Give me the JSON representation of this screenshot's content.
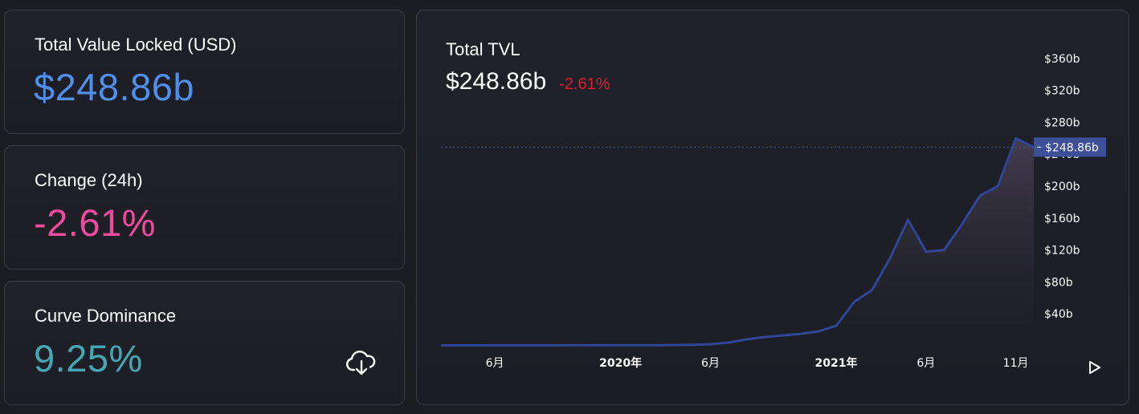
{
  "stats": {
    "tvl": {
      "label": "Total Value Locked (USD)",
      "value": "$248.86b",
      "color": "#4f8fea"
    },
    "change": {
      "label": "Change (24h)",
      "value": "-2.61%",
      "color": "#ed4b9e"
    },
    "dominance": {
      "label": "Curve Dominance",
      "value": "9.25%",
      "color": "#46a7b4",
      "download_icon": "cloud-download-icon"
    }
  },
  "chart": {
    "title": "Total TVL",
    "value": "$248.86b",
    "change": "-2.61%",
    "change_color": "#e01b2f",
    "line_color": "#2f4596",
    "price_tag_color": "#3c4f98",
    "play_icon": "play-icon"
  },
  "chart_data": {
    "type": "area",
    "title": "Total TVL",
    "y_unit": "USD",
    "ylim": [
      0,
      400
    ],
    "y_ticks": [
      40,
      80,
      120,
      160,
      200,
      240,
      280,
      320,
      360
    ],
    "y_tick_labels": [
      "$40b",
      "$80b",
      "$120b",
      "$160b",
      "$200b",
      "$240b",
      "$280b",
      "$320b",
      "$360b"
    ],
    "current_value_label": "$248.86b",
    "current_value": 248.86,
    "x_tick_labels": [
      "6月",
      "2020年",
      "6月",
      "2021年",
      "6月",
      "11月"
    ],
    "x_tick_dates": [
      "2019-06",
      "2020-01",
      "2020-06",
      "2021-01",
      "2021-06",
      "2021-11"
    ],
    "x_range": [
      "2019-03",
      "2021-12"
    ],
    "grid": false,
    "legend": "none",
    "series": [
      {
        "x": [
          "2019-03",
          "2019-06",
          "2019-09",
          "2020-01",
          "2020-03",
          "2020-05",
          "2020-06",
          "2020-07",
          "2020-08",
          "2020-09",
          "2020-10",
          "2020-11",
          "2020-12",
          "2021-01",
          "2021-02",
          "2021-03",
          "2021-04",
          "2021-05",
          "2021-06",
          "2021-07",
          "2021-08",
          "2021-09",
          "2021-10",
          "2021-11",
          "2021-12"
        ],
        "values": [
          0.5,
          0.6,
          0.6,
          0.7,
          0.8,
          1.2,
          2,
          4,
          8,
          11,
          13,
          15,
          18,
          25,
          55,
          70,
          110,
          158,
          118,
          120,
          152,
          188,
          200,
          260,
          248.86
        ]
      }
    ]
  }
}
